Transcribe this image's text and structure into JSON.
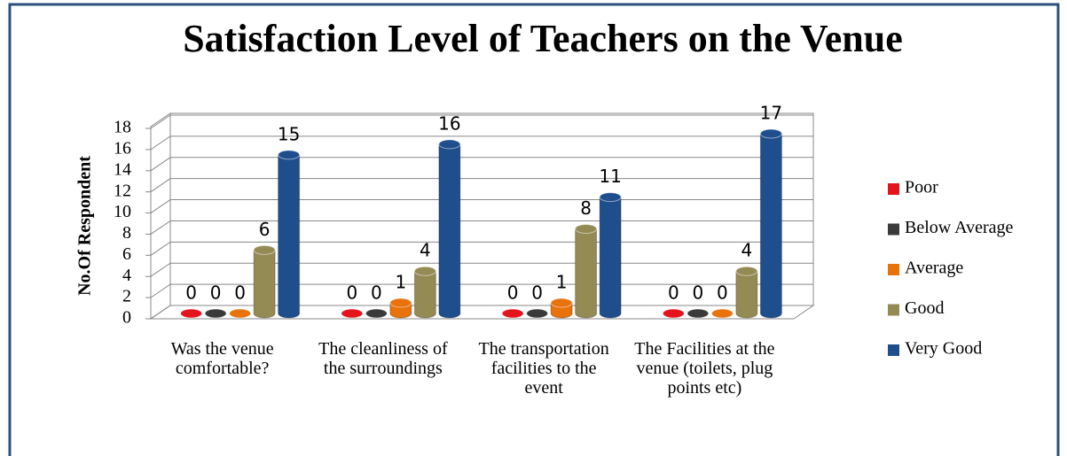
{
  "chart_data": {
    "type": "bar3d",
    "title": "Satisfaction Level of Teachers on the Venue",
    "y_label": "No.Of Respondent",
    "categories": [
      "Was the venue comfortable?",
      "The cleanliness of the surroundings",
      "The transportation facilities to the event",
      "The Facilities at the venue (toilets, plug points etc)"
    ],
    "series": [
      {
        "name": "Poor",
        "color": "#e3141c",
        "values": [
          0,
          0,
          0,
          0
        ]
      },
      {
        "name": "Below Average",
        "color": "#3a3a3a",
        "values": [
          0,
          0,
          0,
          0
        ]
      },
      {
        "name": "Average",
        "color": "#e8720c",
        "values": [
          0,
          1,
          1,
          0
        ]
      },
      {
        "name": "Good",
        "color": "#948a54",
        "values": [
          6,
          4,
          8,
          4
        ]
      },
      {
        "name": "Very Good",
        "color": "#1f4e8c",
        "values": [
          15,
          16,
          11,
          17
        ]
      }
    ],
    "ylim": [
      0,
      18
    ],
    "yticks": [
      0,
      2,
      4,
      6,
      8,
      10,
      12,
      14,
      16,
      18
    ],
    "grid": true,
    "legend": "right"
  }
}
